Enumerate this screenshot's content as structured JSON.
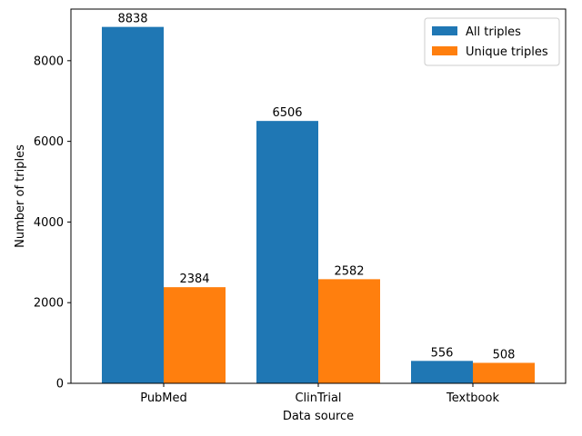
{
  "chart_data": {
    "type": "bar",
    "title": "",
    "xlabel": "Data source",
    "ylabel": "Number of triples",
    "categories": [
      "PubMed",
      "ClinTrial",
      "Textbook"
    ],
    "series": [
      {
        "name": "All triples",
        "values": [
          8838,
          6506,
          556
        ],
        "color": "#1f77b4"
      },
      {
        "name": "Unique triples",
        "values": [
          2384,
          2582,
          508
        ],
        "color": "#ff7f0e"
      }
    ],
    "ylim": [
      0,
      9280
    ],
    "yticks": [
      0,
      2000,
      4000,
      6000,
      8000
    ],
    "grid": false,
    "legend_position": "top-right",
    "data_labels": true
  }
}
